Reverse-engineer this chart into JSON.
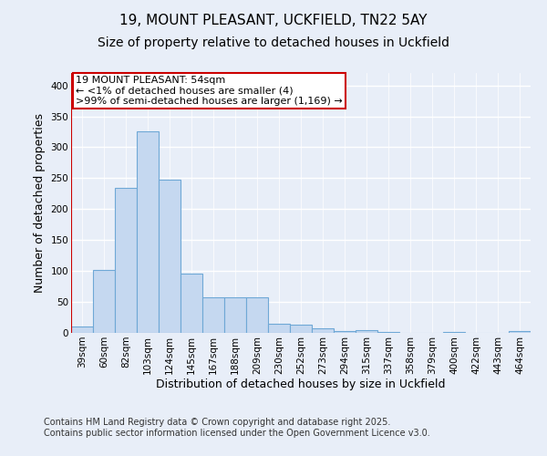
{
  "title_line1": "19, MOUNT PLEASANT, UCKFIELD, TN22 5AY",
  "title_line2": "Size of property relative to detached houses in Uckfield",
  "xlabel": "Distribution of detached houses by size in Uckfield",
  "ylabel": "Number of detached properties",
  "bar_labels": [
    "39sqm",
    "60sqm",
    "82sqm",
    "103sqm",
    "124sqm",
    "145sqm",
    "167sqm",
    "188sqm",
    "209sqm",
    "230sqm",
    "252sqm",
    "273sqm",
    "294sqm",
    "315sqm",
    "337sqm",
    "358sqm",
    "379sqm",
    "400sqm",
    "422sqm",
    "443sqm",
    "464sqm"
  ],
  "bar_values": [
    10,
    102,
    235,
    325,
    248,
    96,
    57,
    58,
    58,
    15,
    14,
    8,
    3,
    4,
    2,
    0,
    0,
    2,
    0,
    0,
    3
  ],
  "bar_color": "#c5d8f0",
  "bar_edge_color": "#6fa8d6",
  "bar_edge_width": 0.8,
  "background_color": "#e8eef8",
  "grid_color": "#ffffff",
  "vline_color": "#cc0000",
  "vline_linewidth": 1.5,
  "annotation_text": "19 MOUNT PLEASANT: 54sqm\n← <1% of detached houses are smaller (4)\n>99% of semi-detached houses are larger (1,169) →",
  "annotation_box_color": "#ffffff",
  "annotation_box_edgecolor": "#cc0000",
  "annotation_fontsize": 8.0,
  "ylim": [
    0,
    420
  ],
  "yticks": [
    0,
    50,
    100,
    150,
    200,
    250,
    300,
    350,
    400
  ],
  "footer_line1": "Contains HM Land Registry data © Crown copyright and database right 2025.",
  "footer_line2": "Contains public sector information licensed under the Open Government Licence v3.0.",
  "title_fontsize": 11,
  "subtitle_fontsize": 10,
  "xlabel_fontsize": 9,
  "ylabel_fontsize": 9,
  "tick_fontsize": 7.5,
  "footer_fontsize": 7
}
